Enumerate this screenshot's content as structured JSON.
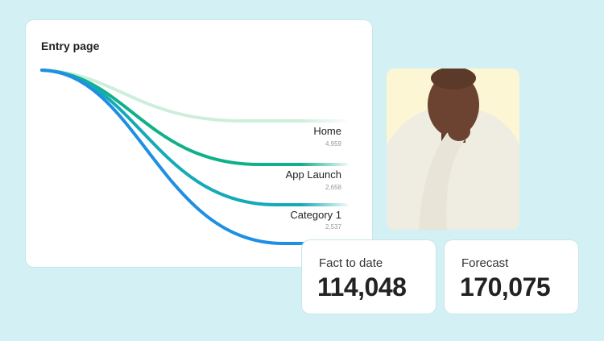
{
  "flow_card": {
    "title": "Entry page",
    "paths": [
      {
        "label": "Home",
        "value": "4,959",
        "color": "#cdeedd"
      },
      {
        "label": "App Launch",
        "value": "2,658",
        "color": "#12b08a"
      },
      {
        "label": "Category 1",
        "value": "2,537",
        "color": "#14aab8"
      },
      {
        "label": "",
        "value": "",
        "color": "#1e8fe3"
      }
    ]
  },
  "photo": {
    "background": "#fdf6d4"
  },
  "kpis": [
    {
      "title": "Fact to date",
      "value": "114,048"
    },
    {
      "title": "Forecast",
      "value": "170,075"
    }
  ]
}
